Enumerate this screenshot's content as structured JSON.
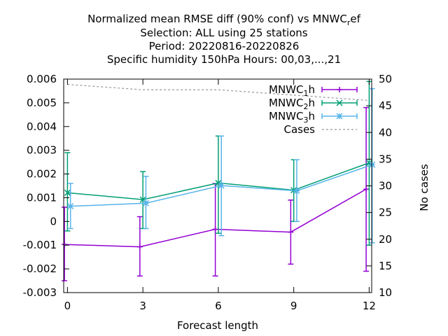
{
  "chart_data": {
    "type": "line",
    "title_lines": [
      "Normalized mean RMSE diff (90% conf) vs MNWC_ref",
      "Selection: ALL using    25 stations",
      "Period: 20220816-20220826",
      "Specific humidity 150hPa   Hours:  00,03,...,21"
    ],
    "xlabel": "Forecast length",
    "ylabel": "",
    "y2label": "No cases",
    "x": [
      0,
      3,
      6,
      9,
      12
    ],
    "xticks": [
      "0",
      "3",
      "6",
      "9",
      "12"
    ],
    "xlim": [
      -0.15,
      12.1
    ],
    "ylim": [
      -0.003,
      0.006
    ],
    "yticks": [
      "-0.003",
      "-0.002",
      "-0.001",
      "0",
      "0.001",
      "0.002",
      "0.003",
      "0.004",
      "0.005",
      "0.006"
    ],
    "y2lim": [
      10,
      50
    ],
    "y2ticks": [
      "10",
      "15",
      "20",
      "25",
      "30",
      "35",
      "40",
      "45",
      "50"
    ],
    "grid": false,
    "legend_position": "top-right",
    "series": [
      {
        "name": "MNWC_1h",
        "legend_main": "MNWC",
        "legend_sub": "1",
        "legend_suffix": "h",
        "color": "#9400d3",
        "marker": "plus",
        "x_offset": -0.12,
        "values": [
          -0.00097,
          -0.00107,
          -0.00033,
          -0.00045,
          0.00136
        ],
        "err_low": [
          -0.0025,
          -0.0023,
          -0.0023,
          -0.0018,
          -0.0021
        ],
        "err_high": [
          0.0006,
          0.0002,
          0.0016,
          0.0009,
          0.0048
        ]
      },
      {
        "name": "MNWC_2h",
        "legend_main": "MNWC",
        "legend_sub": "2",
        "legend_suffix": "h",
        "color": "#009e73",
        "marker": "x",
        "x_offset": 0.0,
        "values": [
          0.00121,
          0.00092,
          0.00162,
          0.00132,
          0.00247
        ],
        "err_low": [
          -0.0004,
          -0.0003,
          -0.0005,
          0.0,
          -0.001
        ],
        "err_high": [
          0.0029,
          0.0021,
          0.0036,
          0.0026,
          0.0059
        ]
      },
      {
        "name": "MNWC_3h",
        "legend_main": "MNWC",
        "legend_sub": "3",
        "legend_suffix": "h",
        "color": "#56b4e9",
        "marker": "star",
        "x_offset": 0.12,
        "values": [
          0.00064,
          0.00077,
          0.00151,
          0.00129,
          0.00239
        ],
        "err_low": [
          -0.0003,
          -0.0003,
          -0.0006,
          0.0,
          -0.0009
        ],
        "err_high": [
          0.0016,
          0.0019,
          0.0036,
          0.0026,
          0.0056
        ]
      }
    ],
    "cases": {
      "name": "Cases",
      "color": "#999999",
      "x": [
        0,
        3,
        6,
        9,
        12
      ],
      "values": [
        49,
        48,
        48,
        47,
        46
      ]
    }
  }
}
